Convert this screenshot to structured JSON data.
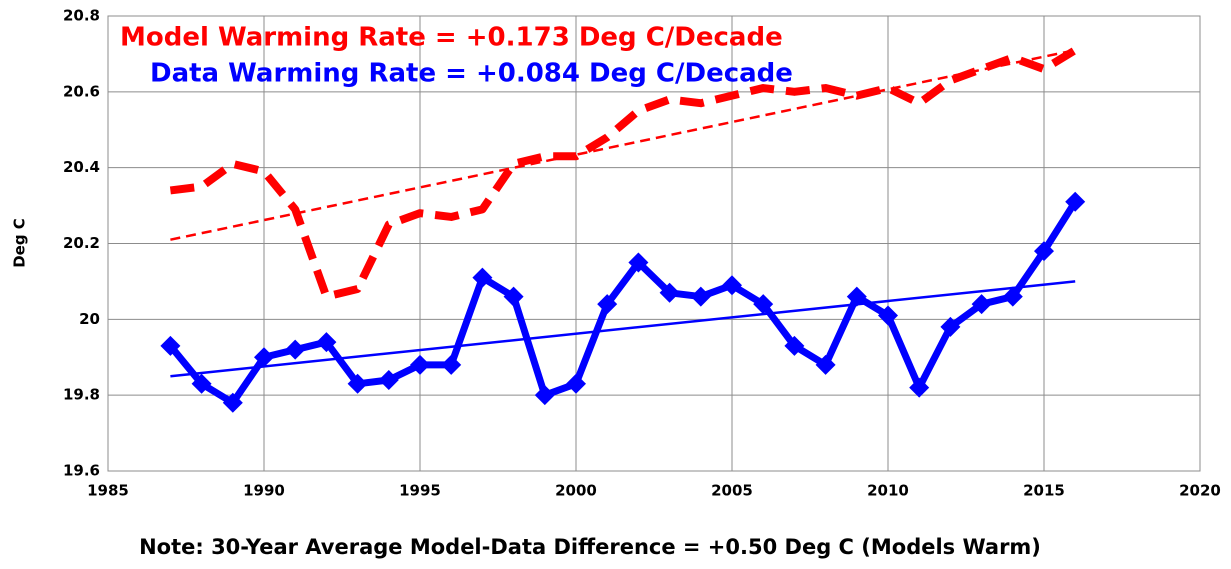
{
  "chart_data": {
    "type": "line",
    "ylabel": "Deg C",
    "note": "Note: 30-Year Average Model-Data Difference = +0.50 Deg C (Models Warm)",
    "annotations": [
      {
        "text": "Model Warming Rate = +0.173 Deg C/Decade",
        "color": "#ff0000"
      },
      {
        "text": "Data Warming Rate = +0.084 Deg C/Decade",
        "color": "#0000ff"
      }
    ],
    "x": [
      1987,
      1988,
      1989,
      1990,
      1991,
      1992,
      1993,
      1994,
      1995,
      1996,
      1997,
      1998,
      1999,
      2000,
      2001,
      2002,
      2003,
      2004,
      2005,
      2006,
      2007,
      2008,
      2009,
      2010,
      2011,
      2012,
      2013,
      2014,
      2015,
      2016
    ],
    "series": [
      {
        "color": "#ff0000",
        "dashed": true,
        "markers": false,
        "values": [
          20.34,
          20.35,
          20.41,
          20.39,
          20.29,
          20.06,
          20.08,
          20.25,
          20.28,
          20.27,
          20.29,
          20.41,
          20.43,
          20.43,
          20.48,
          20.55,
          20.58,
          20.57,
          20.59,
          20.61,
          20.6,
          20.61,
          20.59,
          20.61,
          20.57,
          20.63,
          20.66,
          20.69,
          20.66,
          20.71
        ]
      },
      {
        "color": "#0000ff",
        "dashed": false,
        "markers": true,
        "values": [
          19.93,
          19.83,
          19.78,
          19.9,
          19.92,
          19.94,
          19.83,
          19.84,
          19.88,
          19.88,
          20.11,
          20.06,
          19.8,
          19.83,
          20.04,
          20.15,
          20.07,
          20.06,
          20.09,
          20.04,
          19.93,
          19.88,
          20.06,
          20.01,
          19.82,
          19.98,
          20.04,
          20.06,
          20.18,
          20.31
        ]
      }
    ],
    "trends": [
      {
        "color": "#ff0000",
        "dashed": true,
        "x": [
          1987,
          2016
        ],
        "values": [
          20.21,
          20.71
        ]
      },
      {
        "color": "#0000ff",
        "dashed": false,
        "x": [
          1987,
          2016
        ],
        "values": [
          19.85,
          20.1
        ]
      }
    ],
    "xlim": [
      1985,
      2020
    ],
    "xticks": [
      1985,
      1990,
      1995,
      2000,
      2005,
      2010,
      2015,
      2020
    ],
    "ylim": [
      19.6,
      20.8
    ],
    "yticks": [
      19.6,
      19.8,
      20,
      20.2,
      20.4,
      20.6,
      20.8
    ],
    "grid": true
  }
}
